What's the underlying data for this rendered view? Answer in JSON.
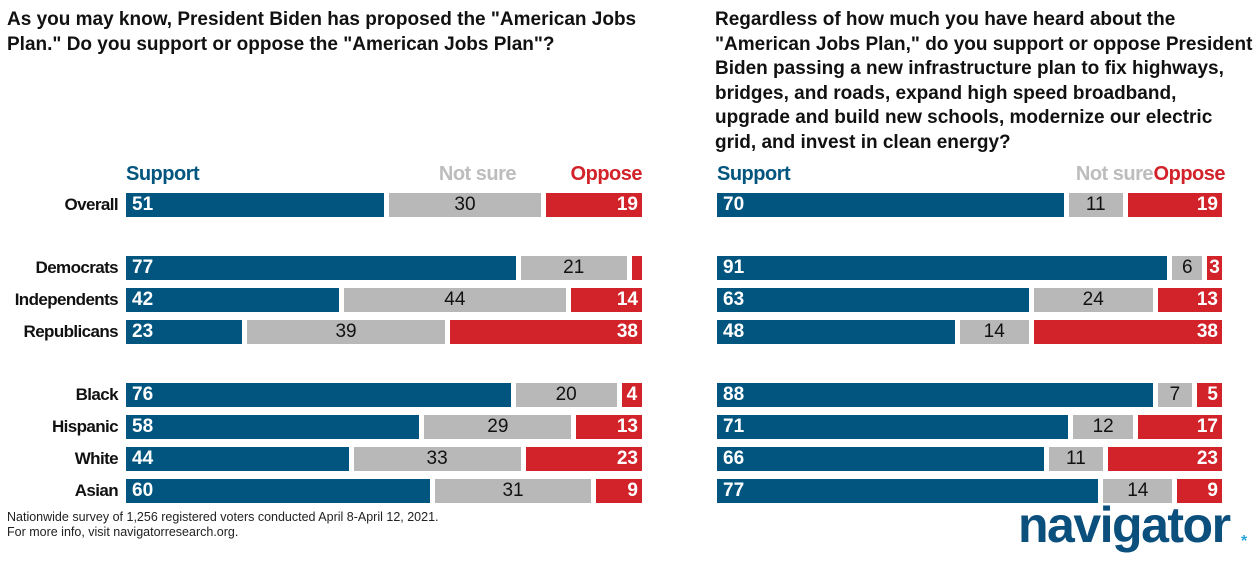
{
  "colors": {
    "support": "#02557f",
    "not_sure": "#b8b8b8",
    "oppose": "#d2222a"
  },
  "chart_data": [
    {
      "type": "bar",
      "orientation": "horizontal",
      "stacked": true,
      "title": "As you may know, President Biden has proposed the \"American Jobs Plan.\" Do you support or oppose the \"American Jobs Plan\"?",
      "legend": [
        "Support",
        "Not sure",
        "Oppose"
      ],
      "categories": [
        "Overall",
        "Democrats",
        "Independents",
        "Republicans",
        "Black",
        "Hispanic",
        "White",
        "Asian"
      ],
      "series": [
        {
          "name": "Support",
          "values": [
            51,
            77,
            42,
            23,
            76,
            58,
            44,
            60
          ]
        },
        {
          "name": "Not sure",
          "values": [
            30,
            21,
            44,
            39,
            20,
            29,
            33,
            31
          ]
        },
        {
          "name": "Oppose",
          "values": [
            19,
            2,
            14,
            38,
            4,
            13,
            23,
            9
          ]
        }
      ],
      "unlabeled": [
        [
          2,
          1
        ]
      ]
    },
    {
      "type": "bar",
      "orientation": "horizontal",
      "stacked": true,
      "title": "Regardless of how much you have heard about the \"American Jobs Plan,\" do you support or oppose President Biden passing a new infrastructure plan to fix highways, bridges, and roads, expand high speed broadband, upgrade and build new schools, modernize our electric grid, and invest in clean energy?",
      "legend": [
        "Support",
        "Not sure",
        "Oppose"
      ],
      "categories": [
        "Overall",
        "Democrats",
        "Independents",
        "Republicans",
        "Black",
        "Hispanic",
        "White",
        "Asian"
      ],
      "series": [
        {
          "name": "Support",
          "values": [
            70,
            91,
            63,
            48,
            88,
            71,
            66,
            77
          ]
        },
        {
          "name": "Not sure",
          "values": [
            11,
            6,
            24,
            14,
            7,
            12,
            11,
            14
          ]
        },
        {
          "name": "Oppose",
          "values": [
            19,
            3,
            13,
            38,
            5,
            17,
            23,
            9
          ]
        }
      ],
      "unlabeled": []
    }
  ],
  "footer": {
    "line1": "Nationwide survey of 1,256 registered voters conducted April 8-April 12, 2021.",
    "line2": "For more info, visit navigatorresearch.org."
  },
  "logo": "navigator"
}
